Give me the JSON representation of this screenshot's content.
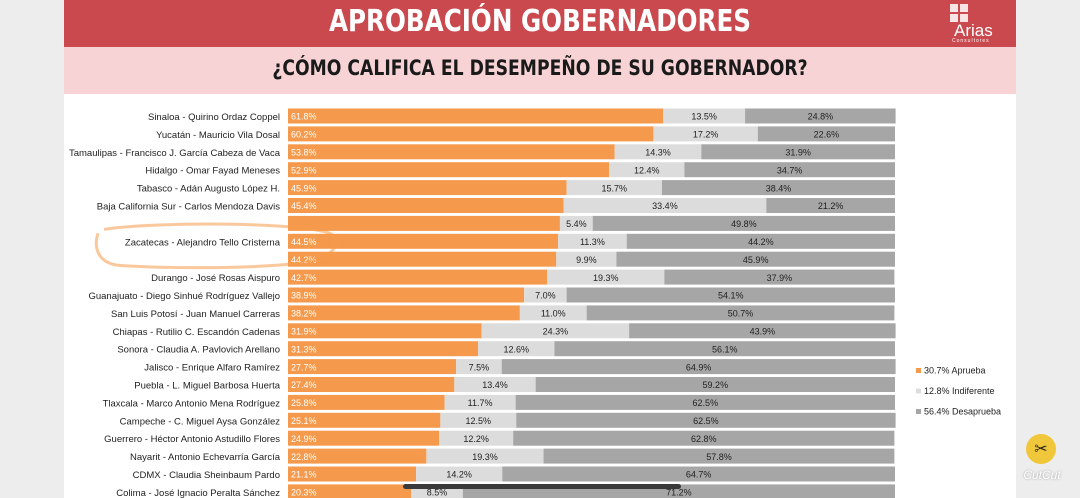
{
  "header": {
    "title": "APROBACIÓN GOBERNADORES",
    "logo_text": "Arias",
    "logo_sub": "Consultores"
  },
  "subheader": {
    "title": "¿CÓMO CALIFICA EL DESEMPEÑO DE SU GOBERNADOR?"
  },
  "watermark": {
    "label": "CutCut"
  },
  "colors": {
    "aprueba": "#f59a4c",
    "indiferente": "#dcdcdc",
    "desaprueba": "#a6a6a6",
    "header": "#c9494e",
    "subheader": "#f7d3d5",
    "highlight": "#f5c08e"
  },
  "chart_data": {
    "type": "bar",
    "orientation": "horizontal",
    "stacked": true,
    "percent_stacked": true,
    "categories": [
      "Sinaloa - Quirino Ordaz Coppel",
      "Yucatán - Mauricio Vila Dosal",
      "Tamaulipas - Francisco J. García Cabeza de Vaca",
      "Hidalgo - Omar Fayad Meneses",
      "Tabasco - Adán Augusto López H.",
      "Baja California Sur - Carlos Mendoza Davis",
      "",
      "Zacatecas - Alejandro Tello Cristerna",
      "",
      "Durango - José Rosas Aispuro",
      "Guanajuato - Diego Sinhué Rodríguez Vallejo",
      "San Luis Potosí - Juan Manuel Carreras",
      "Chiapas - Rutilio C. Escandón Cadenas",
      "Sonora - Claudia A. Pavlovich Arellano",
      "Jalisco - Enrique Alfaro Ramírez",
      "Puebla - L. Miguel Barbosa Huerta",
      "Tlaxcala - Marco Antonio Mena Rodríguez",
      "Campeche - C. Miguel Aysa González",
      "Guerrero - Héctor Antonio Astudillo Flores",
      "Nayarit - Antonio Echevarría García",
      "CDMX - Claudia Sheinbaum Pardo",
      "Colima - José Ignacio Peralta Sánchez"
    ],
    "series": [
      {
        "name": "30.7% Aprueba",
        "color": "#f59a4c",
        "values": [
          61.8,
          60.2,
          53.8,
          52.9,
          45.9,
          45.4,
          44.8,
          44.5,
          44.2,
          42.7,
          38.9,
          38.2,
          31.9,
          31.3,
          27.7,
          27.4,
          25.8,
          25.1,
          24.9,
          22.8,
          21.1,
          20.3
        ],
        "labels": [
          "61.8%",
          "60.2%",
          "53.8%",
          "52.9%",
          "45.9%",
          "45.4%",
          "",
          "44.5%",
          "44.2%",
          "42.7%",
          "38.9%",
          "38.2%",
          "31.9%",
          "31.3%",
          "27.7%",
          "27.4%",
          "25.8%",
          "25.1%",
          "24.9%",
          "22.8%",
          "21.1%",
          "20.3%"
        ]
      },
      {
        "name": "12.8% Indiferente",
        "color": "#dcdcdc",
        "values": [
          13.5,
          17.2,
          14.3,
          12.4,
          15.7,
          33.4,
          5.4,
          11.3,
          9.9,
          19.3,
          7.0,
          11.0,
          24.3,
          12.6,
          7.5,
          13.4,
          11.7,
          12.5,
          12.2,
          19.3,
          14.2,
          8.5
        ],
        "labels": [
          "13.5%",
          "17.2%",
          "14.3%",
          "12.4%",
          "15.7%",
          "33.4%",
          "5.4%",
          "11.3%",
          "9.9%",
          "19.3%",
          "7.0%",
          "11.0%",
          "24.3%",
          "12.6%",
          "7.5%",
          "13.4%",
          "11.7%",
          "12.5%",
          "12.2%",
          "19.3%",
          "14.2%",
          "8.5%"
        ]
      },
      {
        "name": "56.4% Desaprueba",
        "color": "#a6a6a6",
        "values": [
          24.8,
          22.6,
          31.9,
          34.7,
          38.4,
          21.2,
          49.8,
          44.2,
          45.9,
          37.9,
          54.1,
          50.7,
          43.9,
          56.1,
          64.9,
          59.2,
          62.5,
          62.5,
          62.8,
          57.8,
          64.7,
          71.2
        ],
        "labels": [
          "24.8%",
          "22.6%",
          "31.9%",
          "34.7%",
          "38.4%",
          "21.2%",
          "49.8%",
          "44.2%",
          "45.9%",
          "37.9%",
          "54.1%",
          "50.7%",
          "43.9%",
          "56.1%",
          "64.9%",
          "59.2%",
          "62.5%",
          "62.5%",
          "62.8%",
          "57.8%",
          "64.7%",
          "71.2%"
        ]
      }
    ],
    "xlim": [
      0,
      100
    ],
    "legend": "right",
    "grid": false,
    "highlighted_category": "Zacatecas - Alejandro Tello Cristerna"
  }
}
